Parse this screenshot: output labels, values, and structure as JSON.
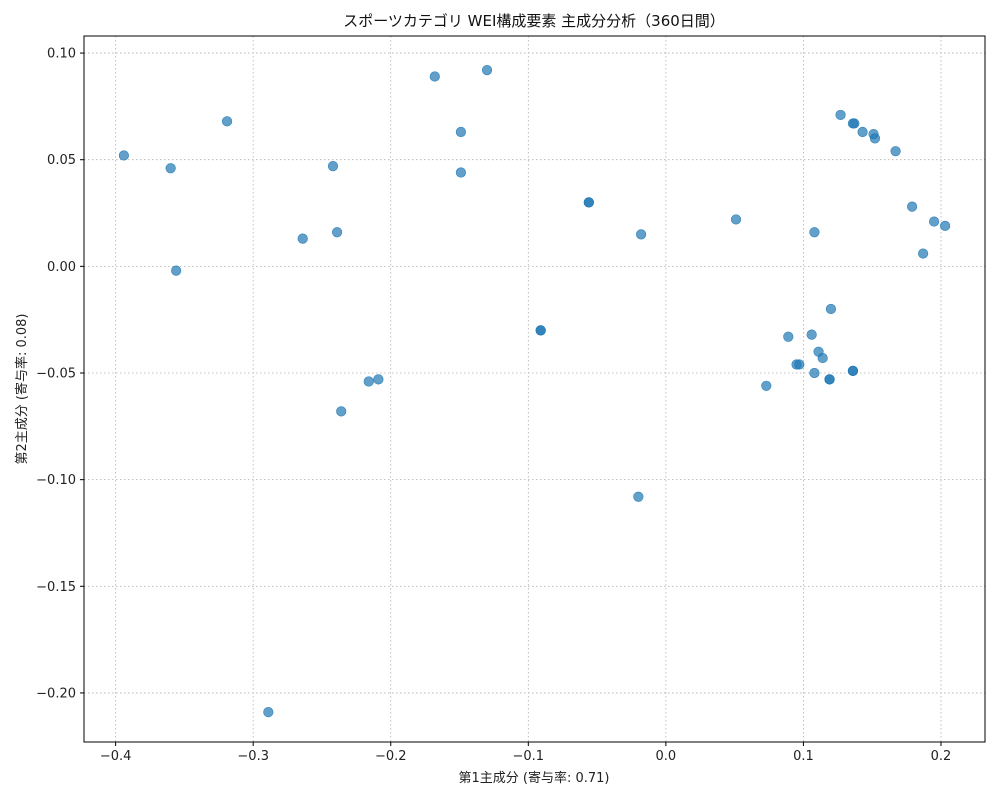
{
  "chart_data": {
    "type": "scatter",
    "title": "スポーツカテゴリ WEI構成要素 主成分分析（360日間）",
    "xlabel": "第1主成分 (寄与率: 0.71)",
    "ylabel": "第2主成分 (寄与率: 0.08)",
    "xlim": [
      -0.423,
      0.232
    ],
    "ylim": [
      -0.223,
      0.108
    ],
    "x_ticks": [
      {
        "value": -0.4,
        "label": "−0.4"
      },
      {
        "value": -0.3,
        "label": "−0.3"
      },
      {
        "value": -0.2,
        "label": "−0.2"
      },
      {
        "value": -0.1,
        "label": "−0.1"
      },
      {
        "value": 0.0,
        "label": "0.0"
      },
      {
        "value": 0.1,
        "label": "0.1"
      },
      {
        "value": 0.2,
        "label": "0.2"
      }
    ],
    "y_ticks": [
      {
        "value": 0.1,
        "label": "0.10"
      },
      {
        "value": 0.05,
        "label": "0.05"
      },
      {
        "value": 0.0,
        "label": "0.00"
      },
      {
        "value": -0.05,
        "label": "−0.05"
      },
      {
        "value": -0.1,
        "label": "−0.10"
      },
      {
        "value": -0.15,
        "label": "−0.15"
      },
      {
        "value": -0.2,
        "label": "−0.20"
      }
    ],
    "grid": true,
    "marker_color": "#1f77b4",
    "marker_alpha": 0.7,
    "points": [
      {
        "x": -0.394,
        "y": 0.052
      },
      {
        "x": -0.36,
        "y": 0.046
      },
      {
        "x": -0.356,
        "y": -0.002
      },
      {
        "x": -0.319,
        "y": 0.068
      },
      {
        "x": -0.289,
        "y": -0.209
      },
      {
        "x": -0.264,
        "y": 0.013
      },
      {
        "x": -0.242,
        "y": 0.047
      },
      {
        "x": -0.239,
        "y": 0.016
      },
      {
        "x": -0.236,
        "y": -0.068
      },
      {
        "x": -0.216,
        "y": -0.054
      },
      {
        "x": -0.209,
        "y": -0.053
      },
      {
        "x": -0.168,
        "y": 0.089
      },
      {
        "x": -0.13,
        "y": 0.092
      },
      {
        "x": -0.149,
        "y": 0.063
      },
      {
        "x": -0.149,
        "y": 0.044
      },
      {
        "x": -0.091,
        "y": -0.03
      },
      {
        "x": -0.091,
        "y": -0.03
      },
      {
        "x": -0.056,
        "y": 0.03
      },
      {
        "x": -0.056,
        "y": 0.03
      },
      {
        "x": -0.02,
        "y": -0.108
      },
      {
        "x": -0.018,
        "y": 0.015
      },
      {
        "x": 0.051,
        "y": 0.022
      },
      {
        "x": 0.073,
        "y": -0.056
      },
      {
        "x": 0.089,
        "y": -0.033
      },
      {
        "x": 0.095,
        "y": -0.046
      },
      {
        "x": 0.097,
        "y": -0.046
      },
      {
        "x": 0.106,
        "y": -0.032
      },
      {
        "x": 0.108,
        "y": -0.05
      },
      {
        "x": 0.108,
        "y": 0.016
      },
      {
        "x": 0.111,
        "y": -0.04
      },
      {
        "x": 0.114,
        "y": -0.043
      },
      {
        "x": 0.119,
        "y": -0.053
      },
      {
        "x": 0.119,
        "y": -0.053
      },
      {
        "x": 0.12,
        "y": -0.02
      },
      {
        "x": 0.127,
        "y": 0.071
      },
      {
        "x": 0.136,
        "y": 0.067
      },
      {
        "x": 0.137,
        "y": 0.067
      },
      {
        "x": 0.136,
        "y": -0.049
      },
      {
        "x": 0.136,
        "y": -0.049
      },
      {
        "x": 0.143,
        "y": 0.063
      },
      {
        "x": 0.151,
        "y": 0.062
      },
      {
        "x": 0.152,
        "y": 0.06
      },
      {
        "x": 0.167,
        "y": 0.054
      },
      {
        "x": 0.179,
        "y": 0.028
      },
      {
        "x": 0.187,
        "y": 0.006
      },
      {
        "x": 0.195,
        "y": 0.021
      },
      {
        "x": 0.203,
        "y": 0.019
      }
    ]
  }
}
